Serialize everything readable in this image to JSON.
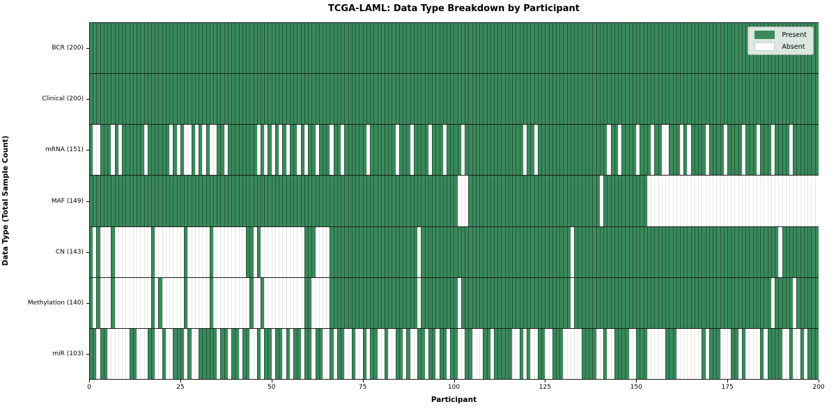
{
  "title": "TCGA-LAML: Data Type Breakdown by Participant",
  "chart_data": {
    "type": "heatmap",
    "title": "TCGA-LAML: Data Type Breakdown by Participant",
    "xlabel": "Participant",
    "ylabel": "Data Type (Total Sample Count)",
    "x_range": [
      0,
      200
    ],
    "x_ticks": [
      "0",
      "25",
      "50",
      "75",
      "100",
      "125",
      "150",
      "175",
      "200"
    ],
    "n_participants": 200,
    "grid": "cell-edges",
    "legend": {
      "position": "upper-right",
      "entries": [
        {
          "label": "Present",
          "color": "#3a8a5c"
        },
        {
          "label": "Absent",
          "color": "#ffffff"
        }
      ]
    },
    "colors": {
      "present": "#3a8a5c",
      "absent": "#ffffff",
      "row_separator": "#1a1a1a",
      "plot_border": "#1a1a1a"
    },
    "rows": [
      {
        "name": "bcr",
        "label": "BCR (200)",
        "total_present": 200,
        "presence": "11111111111111111111111111111111111111111111111111111111111111111111111111111111111111111111111111111111111111111111111111111111111111111111111111111111111111111111111111111111111111111111111111111111"
      },
      {
        "name": "clinical",
        "label": "Clinical (200)",
        "total_present": 200,
        "presence": "11111111111111111111111111111111111111111111111111111111111111111111111111111111111111111111111111111111111111111111111111111111111111111111111111111111111111111111111111111111111111111111111111111111"
      },
      {
        "name": "mrna",
        "label": "mRNA (151)",
        "total_present": 151,
        "presence": "10011101011111101111110101001010100110111111110101010101101011011101101111110111111101110111101110111101111111111111111011011111111111111111110110111101110110011101011110111101111011101110111101111111"
      },
      {
        "name": "maf",
        "label": "MAF (149)",
        "total_present": 149,
        "presence": "11111111111111111111111111111111111111111111111111111111111111111111111111111111111111111111111111111000111111111111111111111111111111111111011111111111100000000000000000000000000000000000000000000000"
      },
      {
        "name": "cn",
        "label": "CN (143)",
        "total_present": 143,
        "presence": "10100010000000000100000000100000010000000001101000000000000111000011111111111111111111111101111111111111111111111111111111111111111101111111111111111111111111111111111111111111111111111111101111111111"
      },
      {
        "name": "methylation",
        "label": "Methylation (140)",
        "total_present": 140,
        "presence": "10100010000000000101000000100000010000000000100100000000000110000011111111111111111111111101111111111011111111111111111111111111111101111111111111111111111111111111111111111111111111111110111110111111"
      },
      {
        "name": "mir",
        "label": "miR (103)",
        "total_present": 103,
        "presence": "11011000000110001100100111010011111011011011001011011010110110110010110010010110010011010011011011011001100011011111001010011001110000011110010011110011100000111000000010111000110100001011110010010111"
      }
    ]
  }
}
